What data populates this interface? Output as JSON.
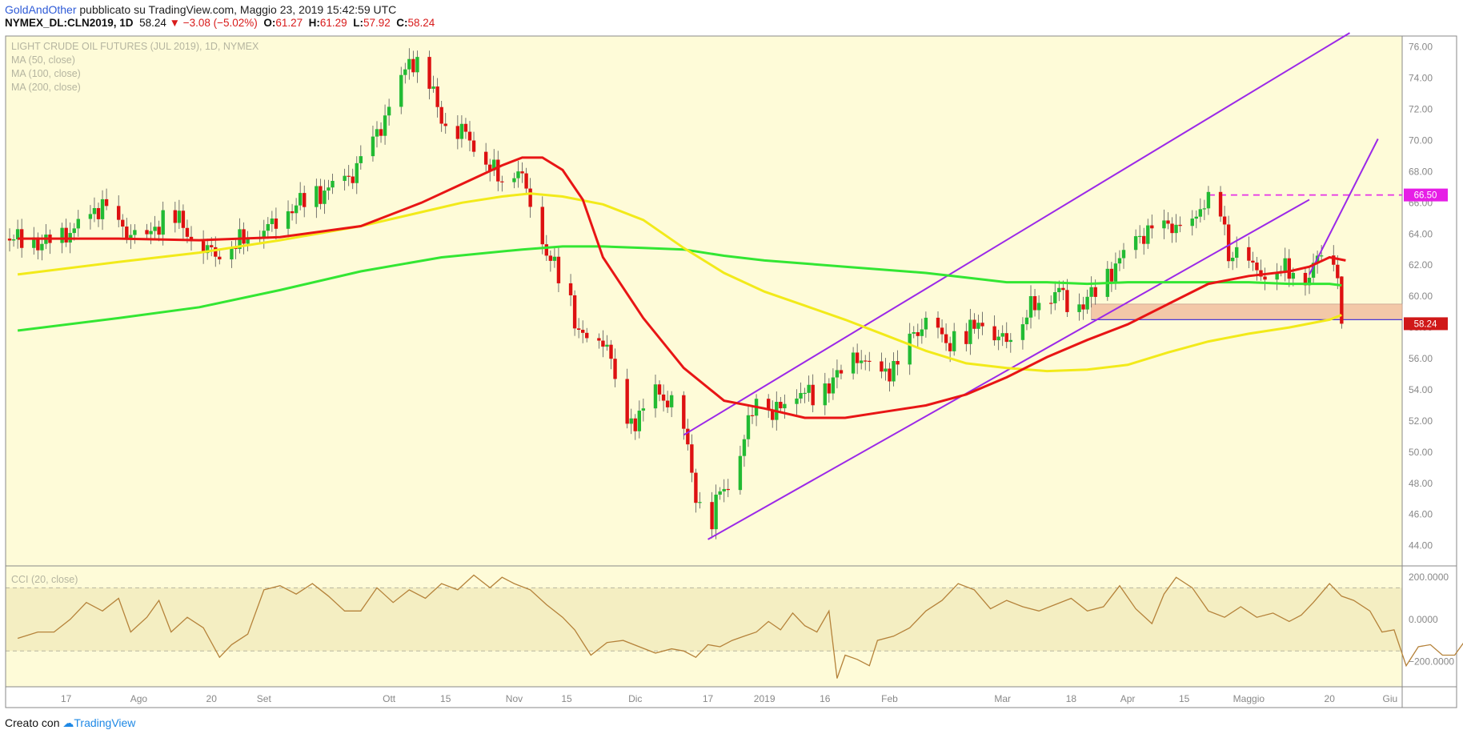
{
  "header": {
    "author": "GoldAndOther",
    "published": "pubblicato su TradingView.com, Maggio 23, 2019 15:42:59 UTC",
    "symbol": "NYMEX_DL:CLN2019, 1D",
    "last": "58.24",
    "change": "▼ −3.08 (−5.02%)",
    "o_label": "O:",
    "o": "61.27",
    "h_label": "H:",
    "h": "61.29",
    "l_label": "L:",
    "l": "57.92",
    "c_label": "C:",
    "c": "58.24"
  },
  "footer": {
    "created_with": "Creato con",
    "brand": "TradingView"
  },
  "colors": {
    "background": "#fefbd8",
    "up": "#22bb33",
    "down": "#dd1111",
    "ma50": "#e81515",
    "ma100": "#f2ea1a",
    "ma200": "#33e633",
    "channel": "#9b28e8",
    "resistance": "#e632e6",
    "support_zone": "#f3c8a8",
    "cci": "#b5823a"
  },
  "chart_data": [
    {
      "type": "candlestick",
      "title": "LIGHT CRUDE OIL FUTURES (JUL 2019), 1D, NYMEX",
      "legend": [
        "MA (50, close)",
        "MA (100, close)",
        "MA (200, close)"
      ],
      "y_ticks": [
        "76.00",
        "74.00",
        "72.00",
        "70.00",
        "68.00",
        "66.00",
        "64.00",
        "62.00",
        "60.00",
        "58.00",
        "56.00",
        "54.00",
        "52.00",
        "50.00",
        "48.00",
        "46.00",
        "44.00"
      ],
      "ylim": [
        42.7,
        76.7
      ],
      "x_ticks": [
        "17",
        "Ago",
        "20",
        "Set",
        "Ott",
        "15",
        "Nov",
        "15",
        "Dic",
        "17",
        "2019",
        "16",
        "Feb",
        "Mar",
        "18",
        "Apr",
        "15",
        "Maggio",
        "20",
        "Giu"
      ],
      "x_tick_days": [
        -153,
        -135,
        -117,
        -104,
        -73,
        -59,
        -42,
        -29,
        -12,
        6,
        20,
        35,
        51,
        79,
        96,
        110,
        124,
        140,
        160,
        175
      ],
      "x_note": "x = calendar day offset from 2019-01-01",
      "price_labels": [
        "66.50",
        "58.24"
      ],
      "resistance_level": 66.5,
      "support_zone": [
        58.5,
        59.5
      ],
      "anchors": {
        "close": [
          [
            -165,
            63.7
          ],
          [
            -159,
            63.4
          ],
          [
            -154,
            63.8
          ],
          [
            -149,
            64.6
          ],
          [
            -144,
            65.9
          ],
          [
            -139,
            64.2
          ],
          [
            -133,
            63.7
          ],
          [
            -127,
            65.6
          ],
          [
            -122,
            63.7
          ],
          [
            -116,
            62.7
          ],
          [
            -109,
            63.7
          ],
          [
            -102,
            64.6
          ],
          [
            -96,
            65.9
          ],
          [
            -89,
            66.7
          ],
          [
            -82,
            67.8
          ],
          [
            -76,
            70.4
          ],
          [
            -71,
            73.0
          ],
          [
            -68,
            75.2
          ],
          [
            -64,
            74.3
          ],
          [
            -59,
            70.8
          ],
          [
            -54,
            70.5
          ],
          [
            -49,
            68.6
          ],
          [
            -45,
            67.5
          ],
          [
            -41,
            68.2
          ],
          [
            -38,
            66.1
          ],
          [
            -34,
            62.8
          ],
          [
            -29,
            60.5
          ],
          [
            -26,
            57.7
          ],
          [
            -22,
            56.6
          ],
          [
            -19,
            57.2
          ],
          [
            -15,
            51.4
          ],
          [
            -11,
            52.3
          ],
          [
            -7,
            53.8
          ],
          [
            -3,
            53.1
          ],
          [
            0,
            51.5
          ],
          [
            3,
            47.3
          ],
          [
            6,
            44.6
          ],
          [
            9,
            47.6
          ],
          [
            12,
            48.1
          ],
          [
            16,
            51.8
          ],
          [
            19,
            54.6
          ],
          [
            22,
            52.3
          ],
          [
            27,
            54.0
          ],
          [
            33,
            53.6
          ],
          [
            38,
            54.9
          ],
          [
            43,
            56.2
          ],
          [
            48,
            54.9
          ],
          [
            53,
            55.5
          ],
          [
            57,
            57.6
          ],
          [
            61,
            58.4
          ],
          [
            65,
            57.0
          ],
          [
            70,
            57.4
          ],
          [
            73,
            58.5
          ],
          [
            78,
            57.2
          ],
          [
            82,
            57.6
          ],
          [
            86,
            59.3
          ],
          [
            89,
            59.9
          ],
          [
            93,
            60.4
          ],
          [
            96,
            59.2
          ],
          [
            99,
            59.6
          ],
          [
            103,
            60.6
          ],
          [
            108,
            62.3
          ],
          [
            112,
            63.7
          ],
          [
            116,
            64.2
          ],
          [
            121,
            64.6
          ],
          [
            125,
            63.9
          ],
          [
            129,
            66.2
          ],
          [
            133,
            65.4
          ],
          [
            135,
            62.5
          ],
          [
            139,
            63.6
          ],
          [
            141,
            61.7
          ],
          [
            144,
            61.4
          ],
          [
            148,
            61.8
          ],
          [
            152,
            61.5
          ],
          [
            155,
            61.2
          ],
          [
            158,
            63.1
          ],
          [
            160,
            63.2
          ],
          [
            162,
            61.4
          ],
          [
            163,
            58.24
          ]
        ]
      },
      "ma": {
        "MA (50, close)": [
          [
            -165,
            63.7
          ],
          [
            -140,
            63.7
          ],
          [
            -120,
            63.6
          ],
          [
            -100,
            63.8
          ],
          [
            -80,
            64.5
          ],
          [
            -65,
            66.0
          ],
          [
            -55,
            67.2
          ],
          [
            -45,
            68.4
          ],
          [
            -40,
            68.9
          ],
          [
            -35,
            68.9
          ],
          [
            -30,
            68.1
          ],
          [
            -25,
            66.2
          ],
          [
            -20,
            62.5
          ],
          [
            -10,
            58.6
          ],
          [
            0,
            55.4
          ],
          [
            10,
            53.3
          ],
          [
            20,
            52.8
          ],
          [
            30,
            52.2
          ],
          [
            40,
            52.2
          ],
          [
            50,
            52.6
          ],
          [
            60,
            53.0
          ],
          [
            70,
            53.7
          ],
          [
            80,
            54.8
          ],
          [
            90,
            56.1
          ],
          [
            100,
            57.2
          ],
          [
            110,
            58.2
          ],
          [
            120,
            59.5
          ],
          [
            130,
            60.8
          ],
          [
            140,
            61.3
          ],
          [
            150,
            61.6
          ],
          [
            155,
            61.9
          ],
          [
            160,
            62.5
          ],
          [
            162,
            62.4
          ],
          [
            164,
            62.3
          ]
        ],
        "MA (100, close)": [
          [
            -165,
            61.4
          ],
          [
            -140,
            62.2
          ],
          [
            -120,
            62.8
          ],
          [
            -100,
            63.6
          ],
          [
            -80,
            64.5
          ],
          [
            -65,
            65.4
          ],
          [
            -55,
            66.0
          ],
          [
            -45,
            66.4
          ],
          [
            -38,
            66.6
          ],
          [
            -30,
            66.4
          ],
          [
            -20,
            65.9
          ],
          [
            -10,
            64.9
          ],
          [
            0,
            63.1
          ],
          [
            10,
            61.5
          ],
          [
            20,
            60.3
          ],
          [
            30,
            59.4
          ],
          [
            40,
            58.5
          ],
          [
            50,
            57.5
          ],
          [
            60,
            56.5
          ],
          [
            70,
            55.7
          ],
          [
            80,
            55.4
          ],
          [
            90,
            55.2
          ],
          [
            100,
            55.3
          ],
          [
            110,
            55.6
          ],
          [
            120,
            56.4
          ],
          [
            130,
            57.1
          ],
          [
            140,
            57.6
          ],
          [
            150,
            58.0
          ],
          [
            160,
            58.5
          ],
          [
            163,
            58.8
          ]
        ],
        "MA (200, close)": [
          [
            -165,
            57.8
          ],
          [
            -140,
            58.6
          ],
          [
            -120,
            59.3
          ],
          [
            -100,
            60.4
          ],
          [
            -80,
            61.6
          ],
          [
            -60,
            62.5
          ],
          [
            -40,
            63.0
          ],
          [
            -30,
            63.2
          ],
          [
            -20,
            63.2
          ],
          [
            -10,
            63.1
          ],
          [
            0,
            63.0
          ],
          [
            10,
            62.6
          ],
          [
            20,
            62.3
          ],
          [
            30,
            62.1
          ],
          [
            40,
            61.9
          ],
          [
            50,
            61.7
          ],
          [
            60,
            61.5
          ],
          [
            70,
            61.2
          ],
          [
            80,
            60.9
          ],
          [
            90,
            60.9
          ],
          [
            100,
            60.8
          ],
          [
            110,
            60.9
          ],
          [
            120,
            60.9
          ],
          [
            130,
            60.9
          ],
          [
            140,
            60.9
          ],
          [
            150,
            60.8
          ],
          [
            160,
            60.8
          ],
          [
            163,
            60.7
          ]
        ]
      },
      "channel": {
        "lower": [
          [
            6,
            44.4
          ],
          [
            155,
            66.2
          ]
        ],
        "upper": [
          [
            0,
            51.1
          ],
          [
            165,
            76.9
          ]
        ],
        "mid": [
          [
            155,
            61.4
          ],
          [
            172,
            70.1
          ]
        ]
      }
    },
    {
      "type": "line",
      "title": "CCI (20, close)",
      "y_ticks": [
        "200.0000",
        "0.0000",
        "−200.0000"
      ],
      "ylim": [
        -320,
        250
      ],
      "bands": [
        -150,
        150
      ],
      "values": [
        [
          -165,
          -90
        ],
        [
          -160,
          -60
        ],
        [
          -156,
          -60
        ],
        [
          -152,
          0
        ],
        [
          -148,
          80
        ],
        [
          -144,
          40
        ],
        [
          -140,
          100
        ],
        [
          -137,
          -60
        ],
        [
          -133,
          10
        ],
        [
          -130,
          90
        ],
        [
          -127,
          -60
        ],
        [
          -123,
          10
        ],
        [
          -119,
          -40
        ],
        [
          -115,
          -180
        ],
        [
          -112,
          -120
        ],
        [
          -108,
          -70
        ],
        [
          -104,
          140
        ],
        [
          -100,
          160
        ],
        [
          -96,
          120
        ],
        [
          -92,
          170
        ],
        [
          -88,
          110
        ],
        [
          -84,
          40
        ],
        [
          -80,
          40
        ],
        [
          -76,
          150
        ],
        [
          -72,
          80
        ],
        [
          -68,
          140
        ],
        [
          -64,
          100
        ],
        [
          -60,
          170
        ],
        [
          -56,
          140
        ],
        [
          -52,
          210
        ],
        [
          -48,
          150
        ],
        [
          -45,
          200
        ],
        [
          -42,
          170
        ],
        [
          -38,
          140
        ],
        [
          -34,
          70
        ],
        [
          -30,
          10
        ],
        [
          -27,
          -50
        ],
        [
          -23,
          -170
        ],
        [
          -19,
          -110
        ],
        [
          -15,
          -100
        ],
        [
          -11,
          -130
        ],
        [
          -7,
          -160
        ],
        [
          -3,
          -140
        ],
        [
          0,
          -150
        ],
        [
          3,
          -180
        ],
        [
          6,
          -120
        ],
        [
          9,
          -130
        ],
        [
          12,
          -100
        ],
        [
          15,
          -80
        ],
        [
          18,
          -60
        ],
        [
          21,
          -10
        ],
        [
          24,
          -50
        ],
        [
          27,
          30
        ],
        [
          30,
          -30
        ],
        [
          33,
          -60
        ],
        [
          36,
          40
        ],
        [
          38,
          -280
        ],
        [
          40,
          -170
        ],
        [
          43,
          -190
        ],
        [
          46,
          -220
        ],
        [
          48,
          -100
        ],
        [
          52,
          -80
        ],
        [
          56,
          -40
        ],
        [
          60,
          40
        ],
        [
          64,
          90
        ],
        [
          68,
          170
        ],
        [
          72,
          140
        ],
        [
          76,
          50
        ],
        [
          80,
          90
        ],
        [
          84,
          60
        ],
        [
          88,
          40
        ],
        [
          92,
          70
        ],
        [
          96,
          100
        ],
        [
          100,
          40
        ],
        [
          104,
          60
        ],
        [
          108,
          160
        ],
        [
          112,
          50
        ],
        [
          116,
          -20
        ],
        [
          119,
          120
        ],
        [
          122,
          200
        ],
        [
          126,
          150
        ],
        [
          130,
          40
        ],
        [
          134,
          10
        ],
        [
          138,
          60
        ],
        [
          142,
          10
        ],
        [
          146,
          30
        ],
        [
          150,
          -10
        ],
        [
          153,
          20
        ],
        [
          156,
          80
        ],
        [
          160,
          170
        ],
        [
          163,
          110
        ],
        [
          166,
          90
        ],
        [
          170,
          40
        ],
        [
          173,
          -60
        ],
        [
          176,
          -50
        ],
        [
          179,
          -220
        ],
        [
          182,
          -130
        ],
        [
          185,
          -120
        ],
        [
          188,
          -170
        ],
        [
          191,
          -170
        ],
        [
          194,
          -90
        ],
        [
          197,
          -100
        ],
        [
          200,
          20
        ],
        [
          203,
          -20
        ],
        [
          205,
          -60
        ],
        [
          207,
          -300
        ]
      ]
    }
  ]
}
